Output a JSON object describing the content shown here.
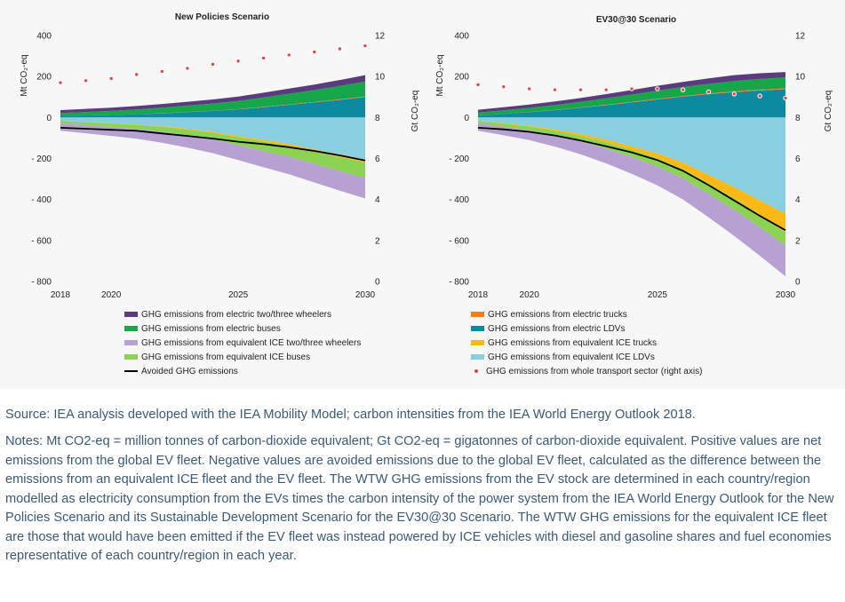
{
  "source_text": "Source: IEA analysis developed with the IEA Mobility Model; carbon intensities from the IEA World Energy Outlook 2018.",
  "notes_text": "Notes: Mt CO2-eq = million tonnes of carbon-dioxide equivalent; Gt CO2-eq = gigatonnes of carbon-dioxide equivalent. Positive values are net emissions from the global EV fleet. Negative values are avoided emissions due to the global EV fleet, calculated as the difference between the emissions from an equivalent ICE fleet and the EV fleet. The WTW GHG emissions from the EV stock are determined in each country/region modelled as electricity consumption from the EVs times the carbon intensity of the power system from the IEA World Energy Outlook for the New Policies Scenario and its Sustainable Development Scenario for the EV30@30 Scenario. The WTW GHG emissions for the equivalent ICE fleet are those that would have been emitted if the EV fleet was instead powered by ICE vehicles with diesel and gasoline shares and fuel economies representative of each country/region in each year.",
  "colors": {
    "ev_two_three_wheelers": "#5b3a7e",
    "ev_buses": "#17a64a",
    "ev_trucks": "#f07f1f",
    "ev_ldvs": "#0e8a9e",
    "ice_two_three_wheelers": "#b7a1d2",
    "ice_buses": "#8cd354",
    "ice_trucks": "#fbb917",
    "ice_ldvs": "#89cfe0",
    "avoided": "#000000",
    "transport_dots": "#e04848"
  },
  "legend_left": [
    {
      "label": "GHG emissions from electric two/three wheelers",
      "color": "#5b3a7e",
      "kind": "box"
    },
    {
      "label": "GHG emissions from electric buses",
      "color": "#17a64a",
      "kind": "box"
    },
    {
      "label": "GHG emissions from equivalent ICE two/three wheelers",
      "color": "#b7a1d2",
      "kind": "box"
    },
    {
      "label": "GHG emissions from equivalent ICE buses",
      "color": "#8cd354",
      "kind": "box"
    },
    {
      "label": "Avoided GHG emissions",
      "color": "#000000",
      "kind": "line"
    }
  ],
  "legend_right": [
    {
      "label": "GHG emissions from electric trucks",
      "color": "#f07f1f",
      "kind": "box"
    },
    {
      "label": "GHG emissions from electric LDVs",
      "color": "#0e8a9e",
      "kind": "box"
    },
    {
      "label": "GHG emissions from equivalent ICE trucks",
      "color": "#fbb917",
      "kind": "box"
    },
    {
      "label": "GHG emissions from equivalent ICE LDVs",
      "color": "#89cfe0",
      "kind": "box"
    },
    {
      "label": "GHG emissions from whole transport sector (right axis)",
      "color": "#e04848",
      "kind": "dot"
    }
  ],
  "chart_data": [
    {
      "type": "area",
      "title": "New Policies Scenario",
      "ylabel": "Mt CO₂-eq",
      "y2label": "Gt CO₂-eq",
      "x": [
        2018,
        2019,
        2020,
        2021,
        2022,
        2023,
        2024,
        2025,
        2026,
        2027,
        2028,
        2029,
        2030
      ],
      "xticks": [
        2018,
        2020,
        2025,
        2030
      ],
      "ylim": [
        -800,
        400
      ],
      "yticks": [
        400,
        200,
        0,
        -200,
        -400,
        -600,
        -800
      ],
      "ytick_labels": [
        "400",
        "200",
        "0",
        "- 200",
        "- 400",
        "- 600",
        "- 800"
      ],
      "y2lim": [
        0,
        12
      ],
      "y2ticks": [
        12,
        10,
        8,
        6,
        4,
        2,
        0
      ],
      "ev_series": [
        {
          "name": "GHG emissions from electric LDVs",
          "key": "ev_ldvs",
          "values": [
            8,
            10,
            12,
            16,
            20,
            26,
            32,
            40,
            50,
            62,
            74,
            86,
            100
          ]
        },
        {
          "name": "GHG emissions from electric trucks",
          "key": "ev_trucks",
          "values": [
            0,
            0,
            0,
            0,
            1,
            1,
            1,
            1,
            2,
            2,
            2,
            3,
            3
          ]
        },
        {
          "name": "GHG emissions from electric buses",
          "key": "ev_buses",
          "values": [
            14,
            17,
            20,
            23,
            27,
            31,
            35,
            40,
            46,
            52,
            58,
            65,
            72
          ]
        },
        {
          "name": "GHG emissions from electric two/three wheelers",
          "key": "ev_two_three_wheelers",
          "values": [
            14,
            15,
            16,
            17,
            18,
            19,
            20,
            21,
            23,
            25,
            27,
            29,
            32
          ]
        }
      ],
      "ice_series": [
        {
          "name": "GHG emissions from equivalent ICE LDVs",
          "key": "ice_ldvs",
          "values": [
            -17,
            -22,
            -28,
            -34,
            -42,
            -55,
            -70,
            -90,
            -110,
            -130,
            -155,
            -180,
            -205
          ]
        },
        {
          "name": "GHG emissions from equivalent ICE trucks",
          "key": "ice_trucks",
          "values": [
            0,
            -1,
            -1,
            -2,
            -3,
            -4,
            -5,
            -6,
            -8,
            -9,
            -11,
            -13,
            -15
          ]
        },
        {
          "name": "GHG emissions from equivalent ICE buses",
          "key": "ice_buses",
          "values": [
            -12,
            -14,
            -17,
            -20,
            -24,
            -28,
            -32,
            -38,
            -45,
            -52,
            -60,
            -68,
            -75
          ]
        },
        {
          "name": "GHG emissions from equivalent ICE two/three wheelers",
          "key": "ice_two_three_wheelers",
          "values": [
            -36,
            -40,
            -44,
            -48,
            -54,
            -60,
            -67,
            -74,
            -80,
            -86,
            -91,
            -96,
            -100
          ]
        }
      ],
      "avoided": [
        -50,
        -55,
        -60,
        -65,
        -78,
        -90,
        -103,
        -118,
        -130,
        -145,
        -163,
        -185,
        -210
      ],
      "transport_gt": [
        9.7,
        9.8,
        9.9,
        10.1,
        10.25,
        10.4,
        10.6,
        10.75,
        10.9,
        11.05,
        11.2,
        11.35,
        11.5
      ]
    },
    {
      "type": "area",
      "title": "EV30@30 Scenario",
      "ylabel": "Mt CO₂-eq",
      "y2label": "Gt CO₂-eq",
      "x": [
        2018,
        2019,
        2020,
        2021,
        2022,
        2023,
        2024,
        2025,
        2026,
        2027,
        2028,
        2029,
        2030
      ],
      "xticks": [
        2018,
        2020,
        2025,
        2030
      ],
      "ylim": [
        -800,
        400
      ],
      "yticks": [
        400,
        200,
        0,
        -200,
        -400,
        -600,
        -800
      ],
      "ytick_labels": [
        "400",
        "200",
        "0",
        "- 200",
        "- 400",
        "- 600",
        "- 800"
      ],
      "y2lim": [
        0,
        12
      ],
      "y2ticks": [
        12,
        10,
        8,
        6,
        4,
        2,
        0
      ],
      "ev_series": [
        {
          "name": "GHG emissions from electric LDVs",
          "key": "ev_ldvs",
          "values": [
            10,
            18,
            26,
            36,
            48,
            60,
            74,
            88,
            102,
            114,
            124,
            132,
            138
          ]
        },
        {
          "name": "GHG emissions from electric trucks",
          "key": "ev_trucks",
          "values": [
            0,
            0,
            1,
            1,
            1,
            2,
            2,
            3,
            3,
            3,
            4,
            4,
            4
          ]
        },
        {
          "name": "GHG emissions from electric buses",
          "key": "ev_buses",
          "values": [
            14,
            17,
            20,
            24,
            28,
            32,
            36,
            40,
            44,
            47,
            50,
            52,
            54
          ]
        },
        {
          "name": "GHG emissions from electric two/three wheelers",
          "key": "ev_two_three_wheelers",
          "values": [
            14,
            15,
            16,
            17,
            18,
            20,
            22,
            24,
            25,
            27,
            29,
            28,
            26
          ]
        }
      ],
      "ice_series": [
        {
          "name": "GHG emissions from equivalent ICE LDVs",
          "key": "ice_ldvs",
          "values": [
            -17,
            -28,
            -40,
            -58,
            -80,
            -108,
            -140,
            -175,
            -220,
            -280,
            -340,
            -405,
            -470
          ]
        },
        {
          "name": "GHG emissions from equivalent ICE trucks",
          "key": "ice_trucks",
          "values": [
            0,
            -2,
            -4,
            -7,
            -10,
            -14,
            -18,
            -24,
            -32,
            -42,
            -55,
            -70,
            -90
          ]
        },
        {
          "name": "GHG emissions from equivalent ICE buses",
          "key": "ice_buses",
          "values": [
            -12,
            -15,
            -18,
            -22,
            -26,
            -30,
            -35,
            -40,
            -45,
            -50,
            -55,
            -60,
            -65
          ]
        },
        {
          "name": "GHG emissions from equivalent ICE two/three wheelers",
          "key": "ice_two_three_wheelers",
          "values": [
            -36,
            -42,
            -48,
            -55,
            -63,
            -72,
            -82,
            -92,
            -103,
            -115,
            -128,
            -140,
            -150
          ]
        }
      ],
      "avoided": [
        -50,
        -58,
        -70,
        -88,
        -112,
        -140,
        -170,
        -208,
        -260,
        -330,
        -405,
        -480,
        -550
      ],
      "transport_gt": [
        9.6,
        9.5,
        9.4,
        9.35,
        9.35,
        9.35,
        9.4,
        9.4,
        9.35,
        9.25,
        9.15,
        9.05,
        8.95
      ]
    }
  ]
}
